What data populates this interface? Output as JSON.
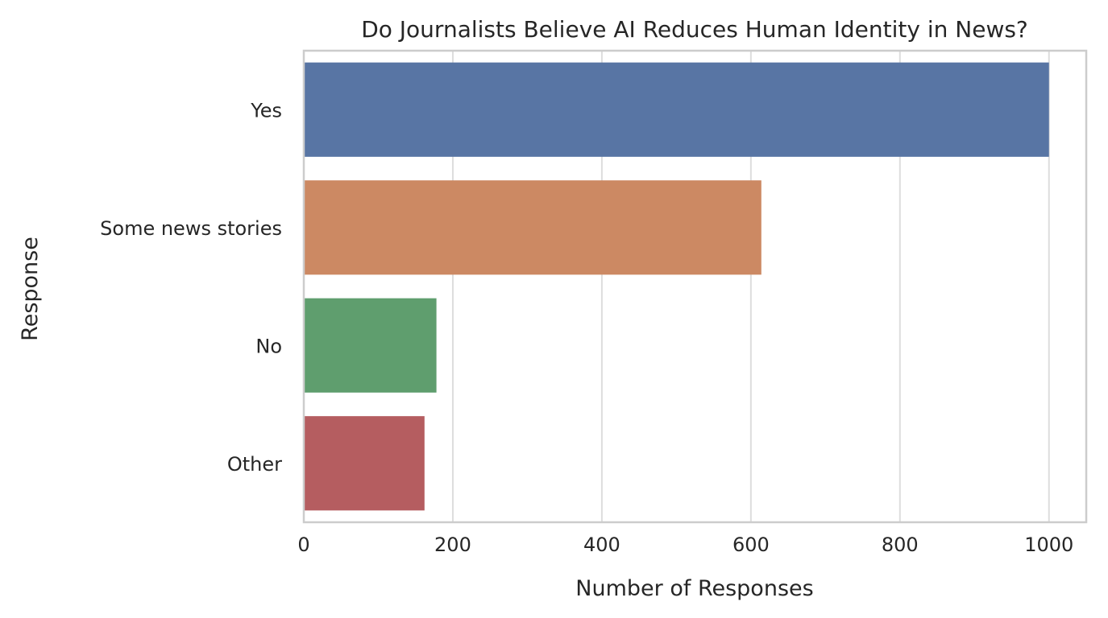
{
  "chart_data": {
    "type": "bar",
    "orientation": "horizontal",
    "title": "Do Journalists Believe AI Reduces Human Identity in News?",
    "xlabel": "Number of Responses",
    "ylabel": "Response",
    "categories": [
      "Yes",
      "Some news stories",
      "No",
      "Other"
    ],
    "values": [
      1000,
      614,
      178,
      162
    ],
    "colors": [
      "#5875a4",
      "#cc8963",
      "#5f9e6e",
      "#b55d60"
    ],
    "xlim": [
      0,
      1050
    ],
    "xticks": [
      0,
      200,
      400,
      600,
      800,
      1000
    ],
    "grid": true,
    "legend": "none"
  }
}
